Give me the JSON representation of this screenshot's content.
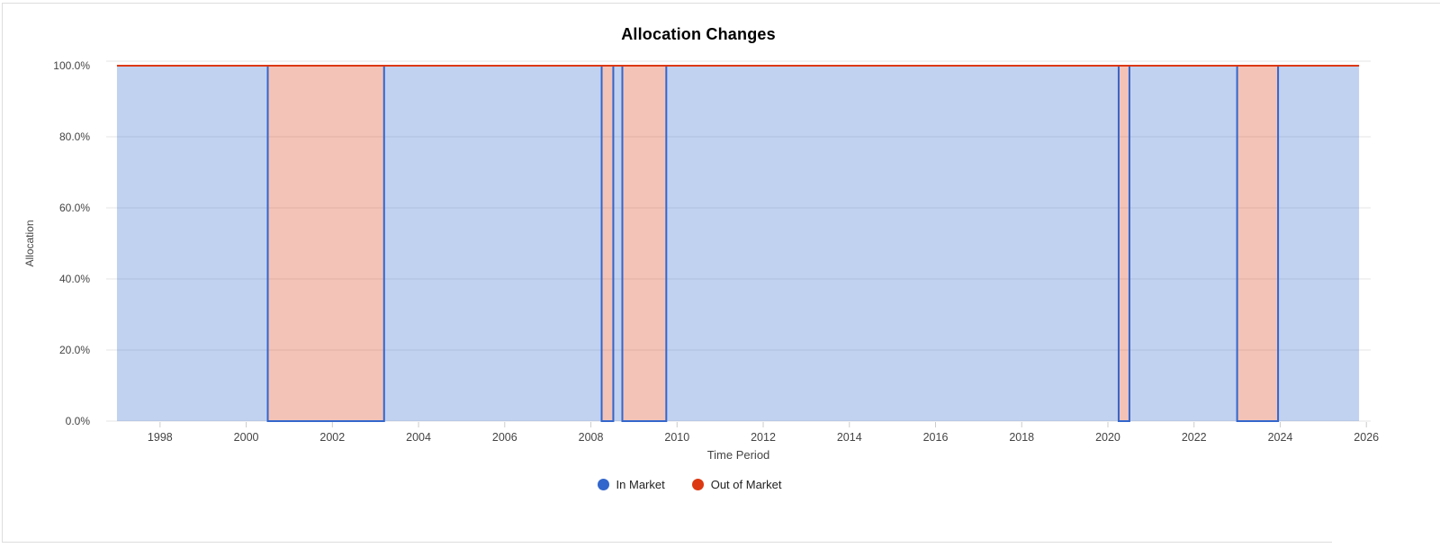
{
  "chart": {
    "title": "Allocation Changes"
  },
  "chart_data": {
    "type": "area",
    "subtype": "stepped-area-stacked",
    "title": "Allocation Changes",
    "xlabel": "Time Period",
    "ylabel": "Allocation",
    "xlim": [
      1996.75,
      2026.1
    ],
    "ylim": [
      0,
      100
    ],
    "grid": true,
    "legend_position": "bottom",
    "x_ticks": [
      1998,
      2000,
      2002,
      2004,
      2006,
      2008,
      2010,
      2012,
      2014,
      2016,
      2018,
      2020,
      2022,
      2024,
      2026
    ],
    "y_ticks": [
      {
        "value": 0,
        "label": "0.0%"
      },
      {
        "value": 20,
        "label": "20.0%"
      },
      {
        "value": 40,
        "label": "40.0%"
      },
      {
        "value": 60,
        "label": "60.0%"
      },
      {
        "value": 80,
        "label": "80.0%"
      },
      {
        "value": 100,
        "label": "100.0%"
      }
    ],
    "series": [
      {
        "name": "In Market",
        "color": "#3366CC",
        "fill": "rgba(51,102,204,0.3)"
      },
      {
        "name": "Out of Market",
        "color": "#DC3912",
        "fill": "rgba(220,57,18,0.3)"
      }
    ],
    "data_range": {
      "start": 1997.0,
      "end": 2025.83
    },
    "segments": [
      {
        "start": 1997.0,
        "end": 2000.5,
        "state": "in",
        "in_market_pct": 100,
        "out_of_market_pct": 0
      },
      {
        "start": 2000.5,
        "end": 2003.2,
        "state": "out",
        "in_market_pct": 0,
        "out_of_market_pct": 100
      },
      {
        "start": 2003.2,
        "end": 2008.25,
        "state": "in",
        "in_market_pct": 100,
        "out_of_market_pct": 0
      },
      {
        "start": 2008.25,
        "end": 2008.52,
        "state": "out",
        "in_market_pct": 0,
        "out_of_market_pct": 100
      },
      {
        "start": 2008.52,
        "end": 2008.73,
        "state": "in",
        "in_market_pct": 100,
        "out_of_market_pct": 0
      },
      {
        "start": 2008.73,
        "end": 2009.75,
        "state": "out",
        "in_market_pct": 0,
        "out_of_market_pct": 100
      },
      {
        "start": 2009.75,
        "end": 2020.25,
        "state": "in",
        "in_market_pct": 100,
        "out_of_market_pct": 0
      },
      {
        "start": 2020.25,
        "end": 2020.5,
        "state": "out",
        "in_market_pct": 0,
        "out_of_market_pct": 100
      },
      {
        "start": 2020.5,
        "end": 2023.0,
        "state": "in",
        "in_market_pct": 100,
        "out_of_market_pct": 0
      },
      {
        "start": 2023.0,
        "end": 2023.95,
        "state": "out",
        "in_market_pct": 0,
        "out_of_market_pct": 100
      },
      {
        "start": 2023.95,
        "end": 2025.83,
        "state": "in",
        "in_market_pct": 100,
        "out_of_market_pct": 0
      }
    ],
    "colors": {
      "gridline": "#e6e6e6",
      "tick": "#cccccc",
      "axis_text": "#444444",
      "title_text": "#000000"
    }
  }
}
